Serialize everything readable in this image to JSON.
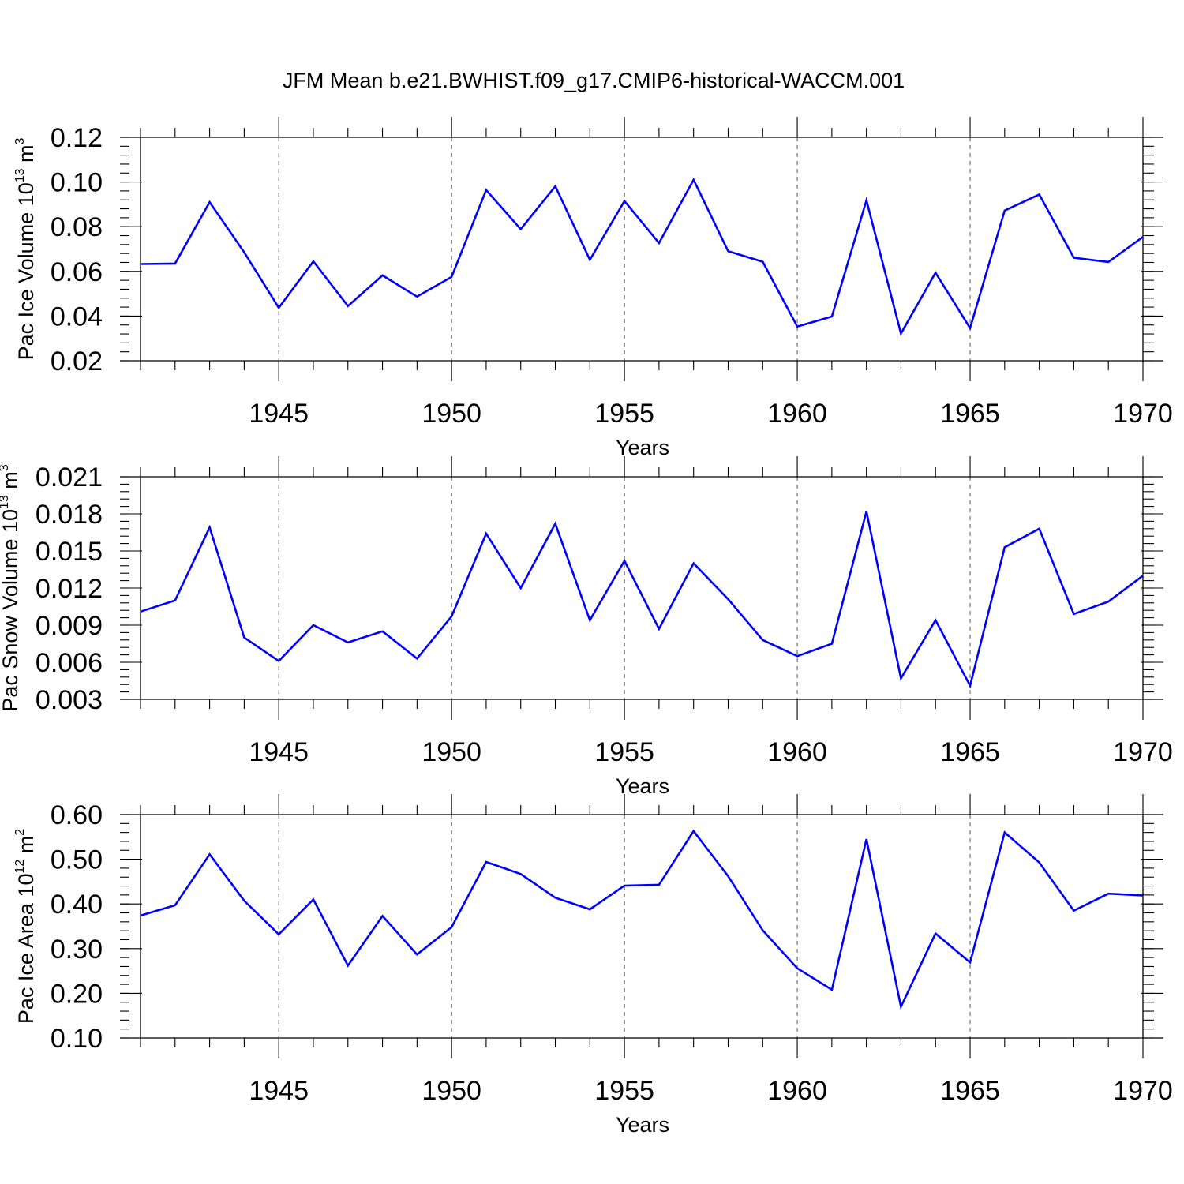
{
  "figure": {
    "title": "JFM Mean b.e21.BWHIST.f09_g17.CMIP6-historical-WACCM.001"
  },
  "chart_data": [
    {
      "type": "line",
      "title": "",
      "xlabel": "Years",
      "ylabel": {
        "base": "Pac Ice Volume 10",
        "exp": "13",
        "unit": " m",
        "unit_exp": "3"
      },
      "xlim": [
        1941,
        1970
      ],
      "ylim": [
        0.02,
        0.12
      ],
      "grid": "dashed vertical at major x ticks",
      "line_color": "#0000ff",
      "x_ticks": [
        1945,
        1950,
        1955,
        1960,
        1965,
        1970
      ],
      "x_tick_labels": [
        "1945",
        "1950",
        "1955",
        "1960",
        "1965",
        "1970"
      ],
      "y_ticks": [
        0.02,
        0.04,
        0.06,
        0.08,
        0.1,
        0.12
      ],
      "y_tick_labels": [
        "0.02",
        "0.04",
        "0.06",
        "0.08",
        "0.10",
        "0.12"
      ],
      "y_minor_step": 0.004,
      "x": [
        1941,
        1942,
        1943,
        1944,
        1945,
        1946,
        1947,
        1948,
        1949,
        1950,
        1951,
        1952,
        1953,
        1954,
        1955,
        1956,
        1957,
        1958,
        1959,
        1960,
        1961,
        1962,
        1963,
        1964,
        1965,
        1966,
        1967,
        1968,
        1969,
        1970
      ],
      "values": [
        0.0633,
        0.0635,
        0.091,
        0.0685,
        0.0437,
        0.0645,
        0.0445,
        0.0582,
        0.0487,
        0.0575,
        0.0964,
        0.0789,
        0.0981,
        0.0652,
        0.0915,
        0.0727,
        0.101,
        0.069,
        0.0643,
        0.0353,
        0.0398,
        0.0918,
        0.0322,
        0.0594,
        0.0346,
        0.0872,
        0.0944,
        0.0661,
        0.0642,
        0.0754
      ]
    },
    {
      "type": "line",
      "title": "",
      "xlabel": "Years",
      "ylabel": {
        "base": "Pac Snow Volume 10",
        "exp": "13",
        "unit": " m",
        "unit_exp": "3"
      },
      "xlim": [
        1941,
        1970
      ],
      "ylim": [
        0.003,
        0.021
      ],
      "grid": "dashed vertical at major x ticks",
      "line_color": "#0000ff",
      "x_ticks": [
        1945,
        1950,
        1955,
        1960,
        1965,
        1970
      ],
      "x_tick_labels": [
        "1945",
        "1950",
        "1955",
        "1960",
        "1965",
        "1970"
      ],
      "y_ticks": [
        0.003,
        0.006,
        0.009,
        0.012,
        0.015,
        0.018,
        0.021
      ],
      "y_tick_labels": [
        "0.003",
        "0.006",
        "0.009",
        "0.012",
        "0.015",
        "0.018",
        "0.021"
      ],
      "y_minor_step": 0.0006,
      "x": [
        1941,
        1942,
        1943,
        1944,
        1945,
        1946,
        1947,
        1948,
        1949,
        1950,
        1951,
        1952,
        1953,
        1954,
        1955,
        1956,
        1957,
        1958,
        1959,
        1960,
        1961,
        1962,
        1963,
        1964,
        1965,
        1966,
        1967,
        1968,
        1969,
        1970
      ],
      "values": [
        0.0101,
        0.011,
        0.0169,
        0.008,
        0.0061,
        0.009,
        0.0076,
        0.0085,
        0.0063,
        0.0097,
        0.0164,
        0.012,
        0.0172,
        0.0094,
        0.0142,
        0.0087,
        0.014,
        0.0111,
        0.0078,
        0.0065,
        0.0075,
        0.0182,
        0.0047,
        0.0094,
        0.0041,
        0.0153,
        0.0168,
        0.0099,
        0.0109,
        0.013
      ]
    },
    {
      "type": "line",
      "title": "",
      "xlabel": "Years",
      "ylabel": {
        "base": "Pac Ice Area 10",
        "exp": "12",
        "unit": " m",
        "unit_exp": "2"
      },
      "xlim": [
        1941,
        1970
      ],
      "ylim": [
        0.1,
        0.6
      ],
      "grid": "dashed vertical at major x ticks",
      "line_color": "#0000ff",
      "x_ticks": [
        1945,
        1950,
        1955,
        1960,
        1965,
        1970
      ],
      "x_tick_labels": [
        "1945",
        "1950",
        "1955",
        "1960",
        "1965",
        "1970"
      ],
      "y_ticks": [
        0.1,
        0.2,
        0.3,
        0.4,
        0.5,
        0.6
      ],
      "y_tick_labels": [
        "0.10",
        "0.20",
        "0.30",
        "0.40",
        "0.50",
        "0.60"
      ],
      "y_minor_step": 0.02,
      "x": [
        1941,
        1942,
        1943,
        1944,
        1945,
        1946,
        1947,
        1948,
        1949,
        1950,
        1951,
        1952,
        1953,
        1954,
        1955,
        1956,
        1957,
        1958,
        1959,
        1960,
        1961,
        1962,
        1963,
        1964,
        1965,
        1966,
        1967,
        1968,
        1969,
        1970
      ],
      "values": [
        0.374,
        0.397,
        0.511,
        0.407,
        0.332,
        0.41,
        0.262,
        0.373,
        0.287,
        0.348,
        0.494,
        0.467,
        0.414,
        0.388,
        0.441,
        0.443,
        0.563,
        0.462,
        0.341,
        0.256,
        0.208,
        0.545,
        0.17,
        0.334,
        0.269,
        0.56,
        0.493,
        0.385,
        0.423,
        0.419
      ]
    }
  ]
}
